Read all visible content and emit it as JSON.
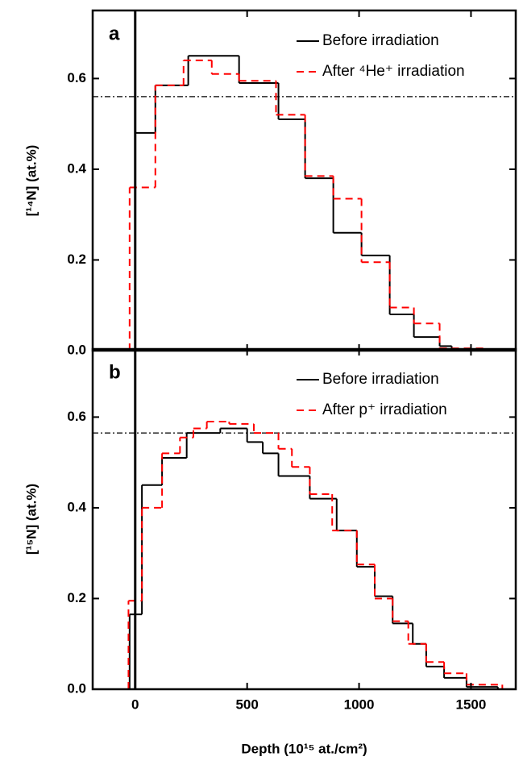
{
  "chart_data": [
    {
      "type": "step",
      "panel_label": "a",
      "ylabel": "[¹⁴N] (at.%)",
      "xlim": [
        -190,
        1700
      ],
      "xticks": [
        0,
        500,
        1000,
        1500
      ],
      "ylim": [
        0,
        0.75
      ],
      "yticks": [
        {
          "value": 0,
          "label": "0.0"
        },
        0.2,
        0.4,
        0.6
      ],
      "vline": 0,
      "hline": 0.56,
      "legend": "upper right",
      "series": [
        {
          "name": "Before irradiation",
          "color": "#000000",
          "style": "solid",
          "bins": [
            0,
            90,
            237,
            464,
            640,
            759,
            885,
            1011,
            1137,
            1245,
            1360,
            1414
          ],
          "values": [
            0.48,
            0.585,
            0.65,
            0.59,
            0.51,
            0.38,
            0.26,
            0.21,
            0.08,
            0.03,
            0.01
          ]
        },
        {
          "name": "After ⁴He⁺ irradiation",
          "color": "#ff0000",
          "style": "dashed",
          "bins": [
            -25,
            90,
            216,
            342,
            464,
            629,
            759,
            885,
            1011,
            1137,
            1245,
            1360,
            1560
          ],
          "values": [
            0.36,
            0.585,
            0.64,
            0.61,
            0.595,
            0.52,
            0.385,
            0.335,
            0.195,
            0.095,
            0.06,
            0.005
          ]
        }
      ]
    },
    {
      "type": "step",
      "panel_label": "b",
      "ylabel": "[¹⁵N] (at.%)",
      "xlabel": "Depth (10¹⁵ at./cm²)",
      "xlim": [
        -190,
        1700
      ],
      "xticks": [
        0,
        500,
        1000,
        1500
      ],
      "ylim": [
        0,
        0.75
      ],
      "yticks": [
        {
          "value": 0,
          "label": "0.0"
        },
        0.2,
        0.4,
        0.6
      ],
      "vline": 0,
      "hline": 0.565,
      "legend": "upper right",
      "series": [
        {
          "name": "Before irradiation",
          "color": "#000000",
          "style": "solid",
          "bins": [
            -25,
            30,
            120,
            230,
            380,
            500,
            570,
            640,
            780,
            900,
            990,
            1070,
            1150,
            1240,
            1300,
            1380,
            1480,
            1620
          ],
          "values": [
            0.165,
            0.45,
            0.51,
            0.565,
            0.575,
            0.545,
            0.52,
            0.47,
            0.42,
            0.35,
            0.27,
            0.205,
            0.145,
            0.1,
            0.05,
            0.025,
            0.005
          ]
        },
        {
          "name": "After p⁺ irradiation",
          "color": "#ff0000",
          "style": "dashed",
          "bins": [
            -30,
            30,
            120,
            200,
            260,
            320,
            420,
            530,
            640,
            700,
            780,
            880,
            990,
            1070,
            1150,
            1220,
            1300,
            1380,
            1480,
            1640
          ],
          "values": [
            0.195,
            0.4,
            0.52,
            0.555,
            0.575,
            0.59,
            0.585,
            0.565,
            0.53,
            0.49,
            0.43,
            0.35,
            0.275,
            0.2,
            0.15,
            0.1,
            0.06,
            0.035,
            0.01
          ]
        }
      ]
    }
  ]
}
